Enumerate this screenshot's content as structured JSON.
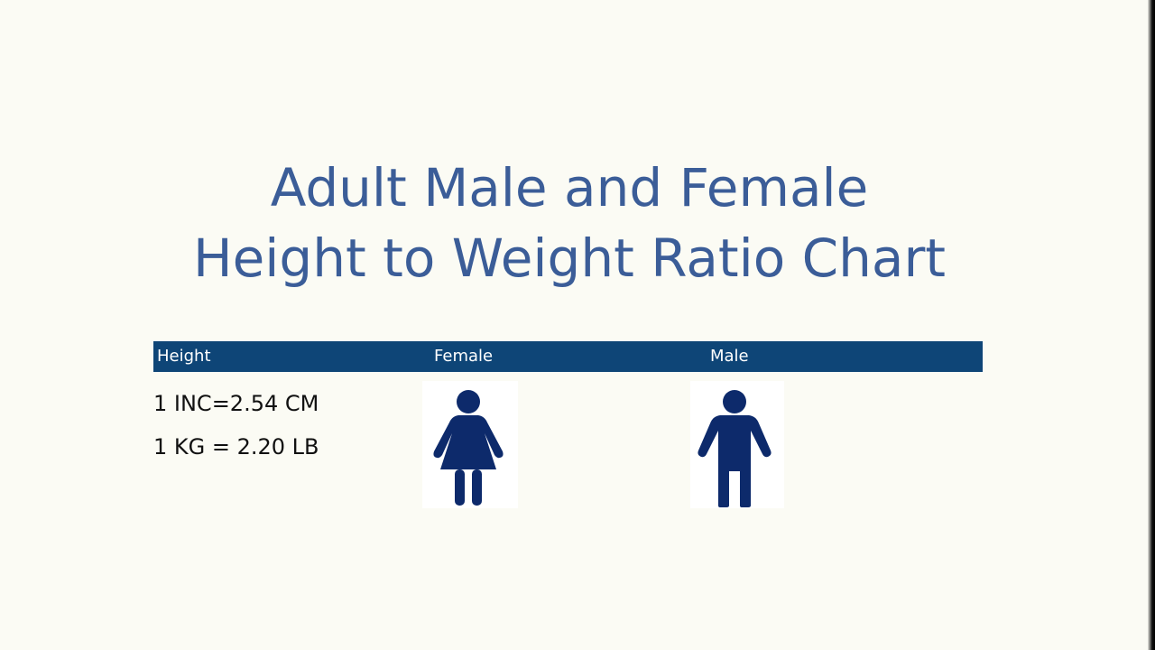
{
  "title": {
    "line1": "Adult Male and Female",
    "line2": "Height to Weight Ratio Chart"
  },
  "table": {
    "headers": [
      "Height",
      "Female",
      "Male"
    ],
    "header_color": "#0e4577"
  },
  "conversions": [
    "1 INC=2.54 CM",
    "1 KG = 2.20 LB"
  ],
  "icons": {
    "female": "female-person-icon",
    "male": "male-person-icon",
    "color": "#0d2a6b"
  },
  "colors": {
    "title": "#3b5d98",
    "background": "#fbfbf4"
  }
}
